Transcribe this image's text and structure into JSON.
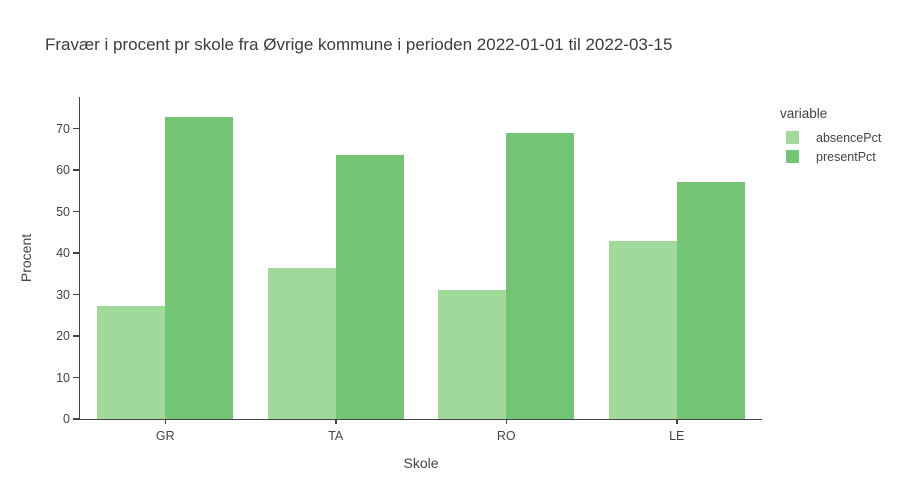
{
  "chart_data": {
    "type": "bar",
    "mode": "grouped",
    "title": "Fravær i procent pr skole fra Øvrige kommune i perioden 2022-01-01 til 2022-03-15",
    "xlabel": "Skole",
    "ylabel": "Procent",
    "categories": [
      "GR",
      "TA",
      "RO",
      "LE"
    ],
    "series": [
      {
        "name": "absencePct",
        "color": "#a1d99b",
        "values": [
          27.3,
          36.4,
          31.1,
          42.9
        ]
      },
      {
        "name": "presentPct",
        "color": "#74c476",
        "values": [
          72.7,
          63.6,
          68.9,
          57.1
        ]
      }
    ],
    "yticks": [
      0,
      10,
      20,
      30,
      40,
      50,
      60,
      70
    ],
    "ylim": [
      0,
      77.6
    ],
    "grid": false,
    "plot_bgcolor": "#ffffff",
    "axis_color": "#444444",
    "legend_title": "variable",
    "legend_position": "right"
  }
}
